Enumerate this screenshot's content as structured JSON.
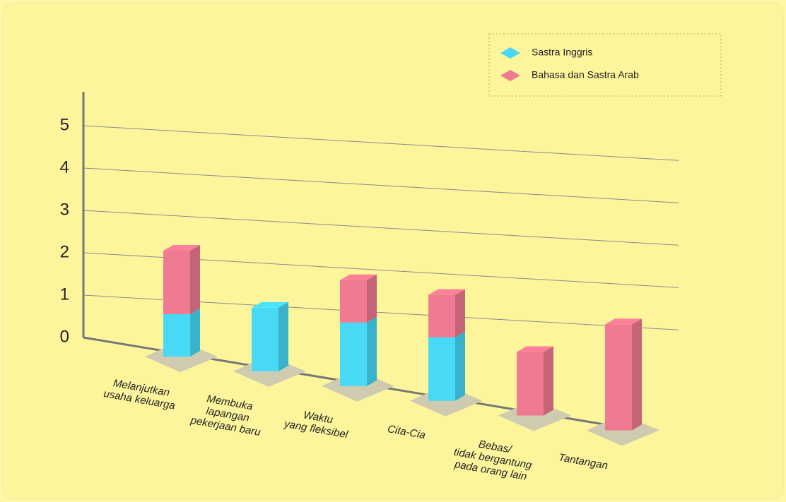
{
  "chart_data": {
    "type": "bar3d_stacked",
    "categories": [
      [
        "Melanjutkan",
        "usaha keluarga"
      ],
      [
        "Membuka",
        "lapangan",
        "pekerjaan baru"
      ],
      [
        "Waktu",
        "yang fleksibel"
      ],
      [
        "Cita-Cia"
      ],
      [
        "Bebas/",
        "tidak bergantung",
        "pada orang lain"
      ],
      [
        "Tantangan"
      ]
    ],
    "series": [
      {
        "name": "Sastra Inggris",
        "color": "#47d9f5",
        "values": [
          1,
          1.5,
          1.5,
          1.5,
          0,
          0
        ]
      },
      {
        "name": "Bahasa dan Sastra Arab",
        "color": "#ef7a91",
        "values": [
          1.5,
          0,
          1,
          1,
          1.5,
          2.5
        ]
      }
    ],
    "ylim": [
      0,
      5.8
    ],
    "yticks": [
      0,
      1,
      2,
      3,
      4,
      5
    ],
    "grid": true
  }
}
